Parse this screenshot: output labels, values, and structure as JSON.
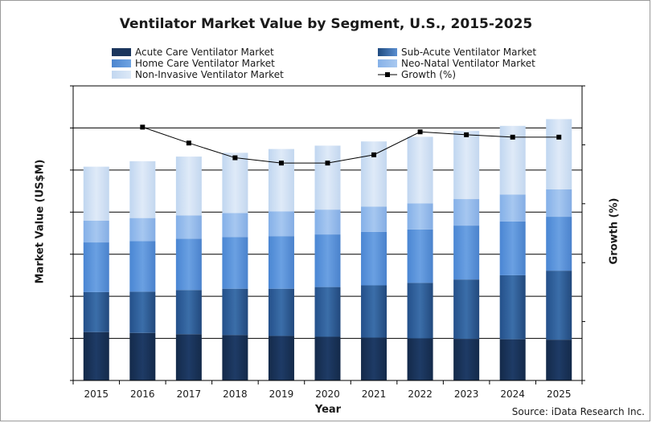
{
  "chart_data": {
    "type": "bar",
    "stacked": true,
    "title": "Ventilator Market Value by Segment, U.S., 2015-2025",
    "xlabel": "Year",
    "ylabel": "Market Value (US$M)",
    "y2label": "Growth (%)",
    "source": "Source: iData Research Inc.",
    "categories": [
      "2015",
      "2016",
      "2017",
      "2018",
      "2019",
      "2020",
      "2021",
      "2022",
      "2023",
      "2024",
      "2025"
    ],
    "ylim": [
      0,
      7
    ],
    "y2lim": [
      0,
      5
    ],
    "ygrid": true,
    "legend_position": "top",
    "series": [
      {
        "name": "Acute Care Ventilator Market",
        "color": "#1b365d",
        "values": [
          1.15,
          1.13,
          1.1,
          1.08,
          1.06,
          1.04,
          1.02,
          1.0,
          0.99,
          0.98,
          0.97
        ]
      },
      {
        "name": "Sub-Acute Ventilator Market",
        "color": "#2e5f95",
        "values": [
          0.95,
          0.98,
          1.05,
          1.1,
          1.12,
          1.18,
          1.24,
          1.32,
          1.41,
          1.52,
          1.64
        ]
      },
      {
        "name": "Home Care Ventilator Market",
        "color": "#5592d8",
        "values": [
          1.18,
          1.2,
          1.22,
          1.23,
          1.25,
          1.25,
          1.27,
          1.27,
          1.28,
          1.28,
          1.28
        ]
      },
      {
        "name": "Neo-Natal Ventilator Market",
        "color": "#8fb8ea",
        "values": [
          0.52,
          0.55,
          0.55,
          0.57,
          0.59,
          0.59,
          0.6,
          0.62,
          0.63,
          0.64,
          0.65
        ]
      },
      {
        "name": "Non-Invasive Ventilator Market",
        "color": "#c9dcf2",
        "values": [
          1.28,
          1.35,
          1.4,
          1.43,
          1.48,
          1.52,
          1.55,
          1.58,
          1.62,
          1.63,
          1.67
        ]
      },
      {
        "name": "Growth (%)",
        "type": "line",
        "axis": "y2",
        "color": "#000000",
        "x": [
          "2016",
          "2017",
          "2018",
          "2019",
          "2020",
          "2021",
          "2022",
          "2023",
          "2024",
          "2025"
        ],
        "values": [
          4.3,
          4.03,
          3.78,
          3.69,
          3.69,
          3.83,
          4.22,
          4.17,
          4.13,
          4.13
        ]
      }
    ]
  }
}
